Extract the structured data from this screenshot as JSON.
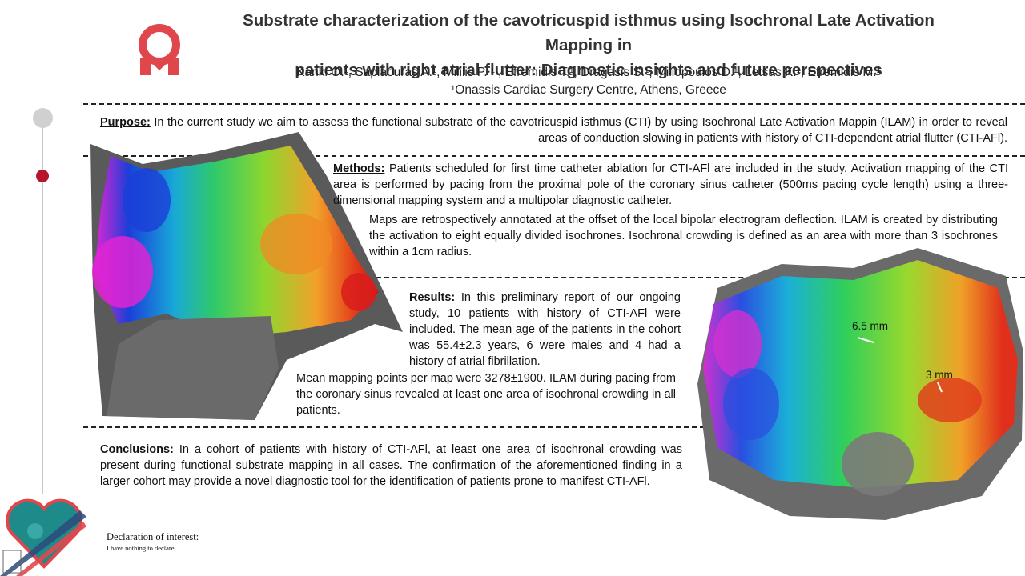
{
  "title": {
    "line1": "Substrate characterization of the cavotricuspid isthmus using Isochronal Late Activation Mapping in",
    "line2": "patients with right atrial flutter: Diagnostic insights and future perspectives"
  },
  "authors": {
    "names": "Kariki O.¹, Saplaouras A.¹, Mililis P.⸱¹⸱, Efremidis T.¹, Dragasis S.¹, Miliopoulos D.¹, Letsas K.¹, Efremidis M.¹",
    "affiliation": "¹Onassis Cardiac Surgery Centre, Athens, Greece"
  },
  "purpose": {
    "label": "Purpose:",
    "text": " In the current study we aim to assess the functional substrate of the cavotricuspid isthmus (CTI) by using Isochronal Late Activation Mappin (ILAM) in order to reveal areas of conduction slowing in patients with history of CTI-dependent atrial flutter (CTI-AFl)."
  },
  "methods": {
    "label": "Methods:",
    "text1": " Patients scheduled for first time catheter ablation for CTI-AFl are included in the study. Activation mapping of the CTI area is performed by pacing from the proximal pole of the coronary sinus catheter (500ms pacing cycle length) using a three-dimensional mapping system and a multipolar diagnostic catheter.",
    "text2": "Maps are retrospectively annotated at the offset of the local bipolar electrogram deflection. ILAM is created by distributing the activation to eight equally divided isochrones. Isochronal crowding is defined as an area with more than 3 isochrones within a 1cm radius."
  },
  "results": {
    "label": "Results:",
    "text1": " In this preliminary report of our ongoing study, 10 patients with history of CTI-AFl were included. The mean age of the patients in the cohort was 55.4±2.3 years, 6 were males and 4 had a history of atrial fibrillation.",
    "text2": "Mean mapping points per map were 3278±1900. ILAM during pacing from the coronary sinus revealed at least one area of isochronal crowding in all patients."
  },
  "conclusions": {
    "label": "Conclusions:",
    "text": " In a cohort of patients with history of CTI-AFl, at least one area of isochronal crowding was present during functional substrate mapping in all cases. The confirmation of the aforementioned finding in a larger cohort may provide a novel diagnostic tool for the identification of patients prone to manifest CTI-AFl."
  },
  "right_map": {
    "label_a": "6.5 mm",
    "label_b": "3 mm"
  },
  "declaration": {
    "heading": "Declaration of interest:",
    "text": "I have nothing to declare"
  },
  "colors": {
    "brand_red": "#e0474c",
    "timeline_red": "#b5162b",
    "teal": "#1f8a8a"
  }
}
